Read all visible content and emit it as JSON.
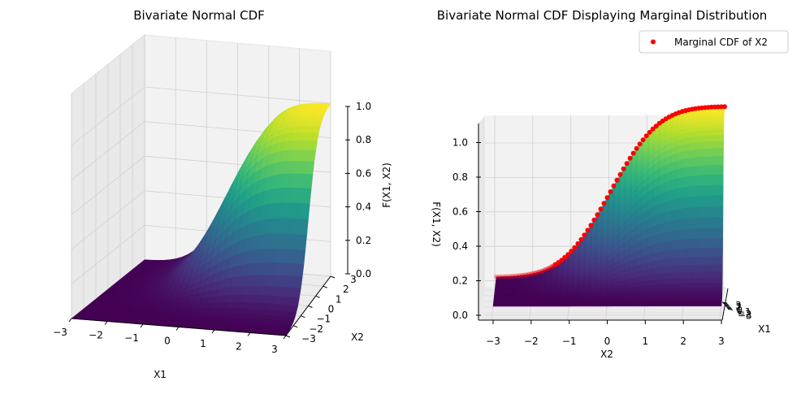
{
  "chart_data": [
    {
      "type": "surface3d",
      "title": "Bivariate Normal CDF",
      "xlabel": "X1",
      "ylabel": "X2",
      "zlabel": "F(X1, X2)",
      "xlim": [
        -3,
        3
      ],
      "ylim": [
        -3,
        3
      ],
      "zlim": [
        0,
        1
      ],
      "xticks": [
        "−3",
        "−2",
        "−1",
        "0",
        "1",
        "2",
        "3"
      ],
      "yticks": [
        "−3",
        "−2",
        "−1",
        "0",
        "1",
        "2",
        "3"
      ],
      "zticks": [
        "0.0",
        "0.2",
        "0.4",
        "0.6",
        "0.8",
        "1.0"
      ],
      "colormap": "viridis",
      "function": "Phi(x1) * Phi(x2)"
    },
    {
      "type": "surface3d",
      "title": "Bivariate Normal CDF Displaying Marginal Distribution",
      "xlabel": "X1",
      "ylabel": "X2",
      "zlabel": "F(X1, X2)",
      "xlim": [
        -3,
        3
      ],
      "ylim": [
        -3,
        3
      ],
      "zlim": [
        0,
        1
      ],
      "xticks": [
        "−3",
        "−2",
        "−1",
        "0",
        "1",
        "2",
        "3"
      ],
      "yticks": [
        "−3",
        "−2",
        "−1",
        "0",
        "1",
        "2",
        "3"
      ],
      "zticks": [
        "0.0",
        "0.2",
        "0.4",
        "0.6",
        "0.8",
        "1.0"
      ],
      "colormap": "viridis",
      "legend": "Marginal CDF of X2",
      "legend_position": "top-right",
      "marginal_color": "#ff0000"
    }
  ]
}
